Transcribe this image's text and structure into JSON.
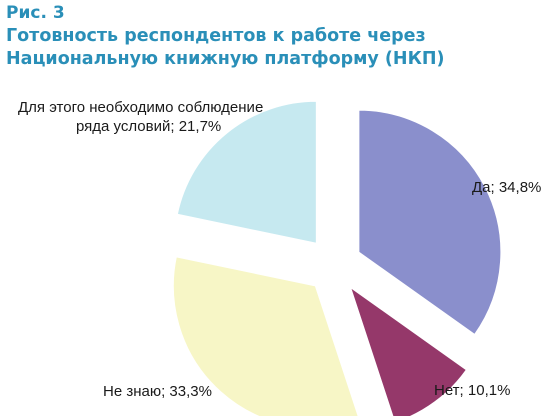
{
  "figure_label": "Рис. 3",
  "chart_data": {
    "type": "pie",
    "title": "Готовность респондентов к работе через Национальную книжную платформу (НКП)",
    "slices": [
      {
        "label": "Да",
        "value": 34.8,
        "display": "Да; 34,8%",
        "color": "#8a8fcc"
      },
      {
        "label": "Нет",
        "value": 10.1,
        "display": "Нет; 10,1%",
        "color": "#95386a"
      },
      {
        "label": "Не знаю",
        "value": 33.3,
        "display": "Не знаю; 33,3%",
        "color": "#f7f6c6"
      },
      {
        "label": "Для этого необходимо соблюдение ряда условий",
        "value": 21.7,
        "display_lines": [
          "Для этого необходимо соблюдение",
          "ряда условий; 21,7%"
        ],
        "color": "#c6e9f0"
      }
    ],
    "exploded": true,
    "legend": "none"
  }
}
